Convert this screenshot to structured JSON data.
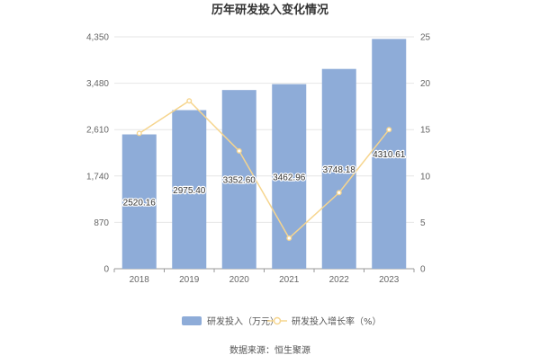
{
  "chart_data": {
    "type": "bar",
    "title": "历年研发投入变化情况",
    "categories": [
      "2018",
      "2019",
      "2020",
      "2021",
      "2022",
      "2023"
    ],
    "series": [
      {
        "name": "研发投入（万元）",
        "type": "bar",
        "axis": "left",
        "values": [
          2520.16,
          2975.4,
          3352.6,
          3462.96,
          3748.18,
          4310.61
        ],
        "labels": [
          "2520.16",
          "2975.40",
          "3352.60",
          "3462.96",
          "3748.18",
          "4310.61"
        ],
        "color": "#8eacd8"
      },
      {
        "name": "研发投入增长率（%）",
        "type": "line",
        "axis": "right",
        "values": [
          14.6,
          18.1,
          12.7,
          3.3,
          8.2,
          15.0
        ],
        "color": "#f6d58e"
      }
    ],
    "y_left": {
      "ticks": [
        "0",
        "870",
        "1,740",
        "2,610",
        "3,480",
        "4,350"
      ],
      "range": [
        0,
        4350
      ]
    },
    "y_right": {
      "ticks": [
        "0",
        "5",
        "10",
        "15",
        "20",
        "25"
      ],
      "range": [
        0,
        25
      ]
    },
    "grid": true,
    "legend": "bottom"
  },
  "footer": {
    "source": "数据来源：恒生聚源"
  }
}
